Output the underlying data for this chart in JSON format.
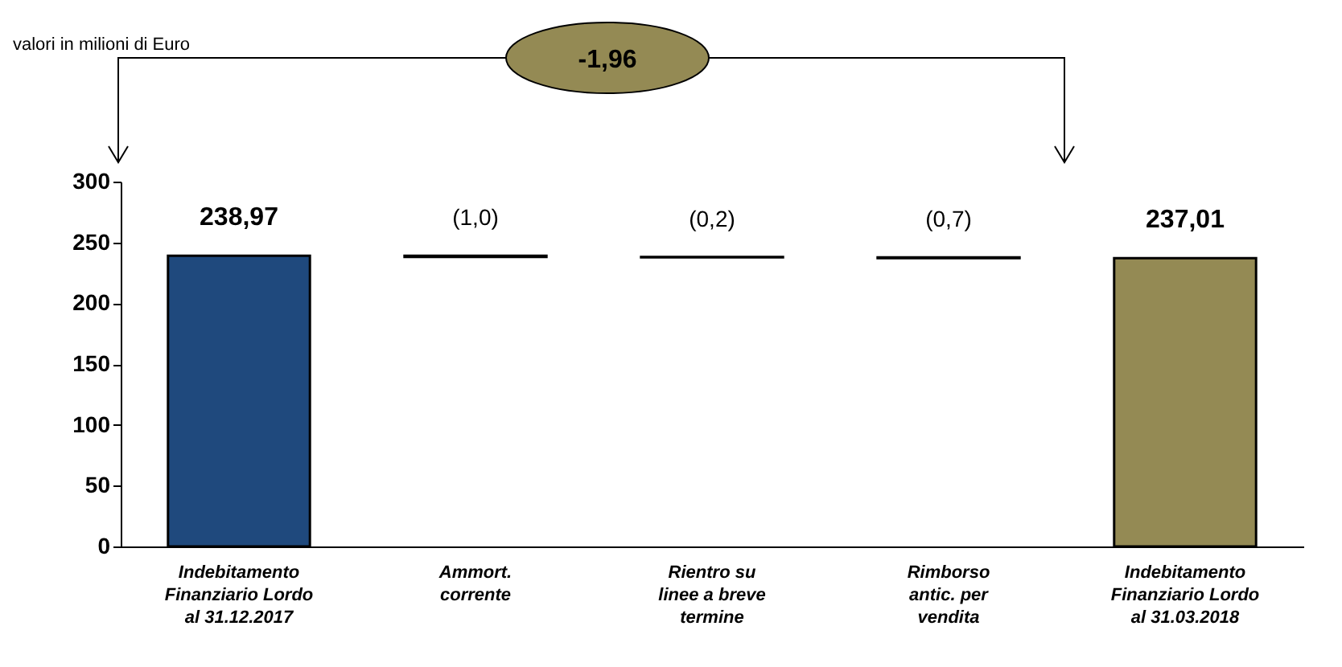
{
  "chart_data": {
    "type": "bar",
    "categories": [
      "Indebitamento\nFinanziario  Lordo\nal 31.12.2017",
      "Ammort.\ncorrente",
      "Rientro su\nlinee  a breve\ntermine",
      "Rimborso\nantic. per\nvendita",
      "Indebitamento\nFinanziario Lordo\nal 31.03.2018"
    ],
    "values": [
      238.97,
      -1.0,
      -0.2,
      -0.7,
      237.01
    ],
    "base": [
      0,
      238.97,
      237.97,
      237.77,
      0
    ],
    "colors": [
      "#1f497d",
      "#000000",
      "#000000",
      "#000000",
      "#948a54"
    ],
    "value_labels": [
      "238,97",
      "(1,0)",
      "(0,2)",
      "(0,7)",
      "237,01"
    ],
    "ylim": [
      0,
      300
    ],
    "yticks": [
      0,
      50,
      100,
      150,
      200,
      250,
      300
    ],
    "grid": false,
    "annotations": [
      "valori in milioni di Euro",
      "-1,96"
    ]
  }
}
